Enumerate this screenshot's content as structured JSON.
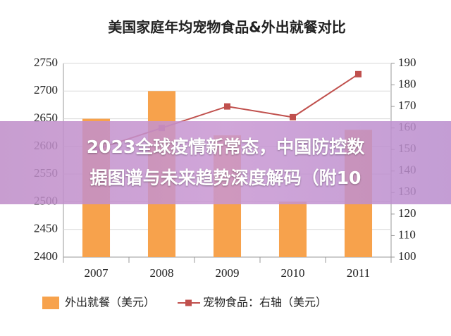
{
  "chart_data": {
    "type": "bar-line",
    "title": "美国家庭年均宠物食品&外出就餐对比",
    "categories": [
      "2007",
      "2008",
      "2009",
      "2010",
      "2011"
    ],
    "series": [
      {
        "name": "外出就餐（美元）",
        "type": "bar",
        "color": "#f7a24c",
        "values": [
          2650,
          2700,
          2620,
          2500,
          2630
        ]
      },
      {
        "name": "宠物食品：右轴（美元）",
        "type": "line",
        "axis": "y2",
        "color": "#c0504d",
        "values": [
          150,
          160,
          170,
          165,
          185
        ]
      }
    ],
    "ylim": [
      2400,
      2750
    ],
    "yticks": [
      2400,
      2450,
      2500,
      2550,
      2600,
      2650,
      2700,
      2750
    ],
    "y2lim": [
      100,
      190
    ],
    "y2ticks": [
      100,
      110,
      120,
      130,
      140,
      150,
      160,
      170,
      180,
      190
    ],
    "grid": true,
    "legend": "bottom"
  },
  "overlay": {
    "lines": [
      "2023全球疫情新常态，中国防控数",
      "据图谱与未来趋势深度解码（附10"
    ]
  }
}
